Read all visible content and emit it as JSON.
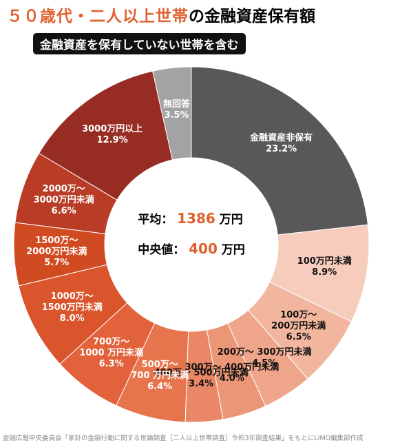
{
  "chart_data": {
    "type": "donut",
    "title": {
      "highlight": "５０歳代・二人以上世帯",
      "rest": "の金融資産保有額"
    },
    "subtitle": "金融資産を保有していない世帯を含む",
    "center": {
      "mean_label": "平均：",
      "mean": 1386,
      "median_label": "中央値：",
      "median": 400,
      "unit": "万円"
    },
    "source": "金融広報中央委員会「家計の金融行動に関する世論調査［二人以上世帯調査］令和3年調査結果」をもとにLIMO編集部作成",
    "categories": [
      "金融資産非保有",
      "100万円未満",
      "100万～\n200万円未満",
      "200万～ 300万円未満",
      "300万～ 400万円未満",
      "400万～ 500万円未満",
      "500万～\n700 万円未満",
      "700万～\n1000 万円未満",
      "1000万～\n1500万円未満",
      "1500万～\n2000万円未満",
      "2000万～\n3000万円未満",
      "3000万円以上",
      "無回答"
    ],
    "values": [
      23.2,
      8.9,
      6.5,
      4.5,
      4.0,
      3.4,
      6.4,
      6.3,
      8.0,
      5.7,
      6.6,
      12.9,
      3.5
    ],
    "value_labels": [
      "23.2%",
      "8.9%",
      "6.5%",
      "4.5%",
      "4.0%",
      "3.4%",
      "6.4%",
      "6.3%",
      "8.0%",
      "5.7%",
      "6.6%",
      "12.9%",
      "3.5%"
    ],
    "colors": [
      "#58585a",
      "#f6cdbc",
      "#f2b69e",
      "#efa58a",
      "#ec9678",
      "#e98766",
      "#e6744c",
      "#e1623b",
      "#da542c",
      "#d04b22",
      "#b83c26",
      "#972d22",
      "#a3a3a3"
    ],
    "label_colors": [
      "#fff",
      "#111",
      "#111",
      "#111",
      "#111",
      "#111",
      "#fff",
      "#fff",
      "#fff",
      "#fff",
      "#fff",
      "#fff",
      "#fff"
    ]
  }
}
